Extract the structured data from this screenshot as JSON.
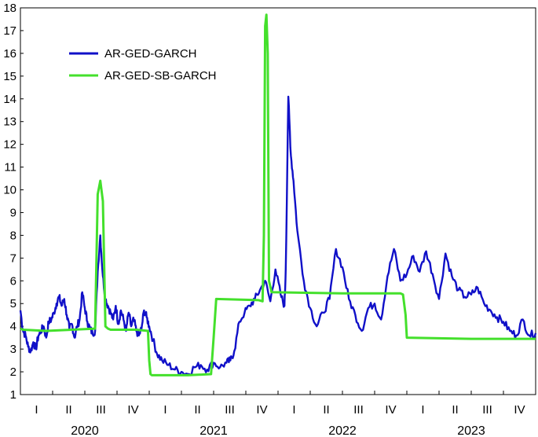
{
  "chart_data": {
    "type": "line",
    "title": "",
    "xlabel": "",
    "ylabel": "",
    "ylim": [
      1,
      18
    ],
    "yticks": [
      1,
      2,
      3,
      4,
      5,
      6,
      7,
      8,
      9,
      10,
      11,
      12,
      13,
      14,
      15,
      16,
      17,
      18
    ],
    "xlim": [
      2020.0,
      2024.0
    ],
    "quarter_labels": [
      "I",
      "II",
      "III",
      "IV",
      "I",
      "II",
      "III",
      "IV",
      "I",
      "II",
      "III",
      "IV",
      "I",
      "II",
      "III",
      "IV"
    ],
    "year_labels": [
      "2020",
      "2021",
      "2022",
      "2023"
    ],
    "grid": false,
    "legend": {
      "placement": "top-left"
    },
    "series": [
      {
        "name": "AR-GED-GARCH",
        "color": "#1010c8",
        "x": [
          2020.0,
          2020.02,
          2020.04,
          2020.06,
          2020.08,
          2020.1,
          2020.12,
          2020.14,
          2020.16,
          2020.18,
          2020.2,
          2020.22,
          2020.24,
          2020.26,
          2020.28,
          2020.3,
          2020.32,
          2020.34,
          2020.36,
          2020.38,
          2020.4,
          2020.42,
          2020.44,
          2020.46,
          2020.48,
          2020.5,
          2020.52,
          2020.54,
          2020.56,
          2020.58,
          2020.6,
          2020.62,
          2020.64,
          2020.66,
          2020.68,
          2020.7,
          2020.72,
          2020.74,
          2020.76,
          2020.78,
          2020.8,
          2020.82,
          2020.84,
          2020.86,
          2020.88,
          2020.9,
          2020.92,
          2020.94,
          2020.96,
          2020.98,
          2021.0,
          2021.03,
          2021.06,
          2021.1,
          2021.15,
          2021.2,
          2021.25,
          2021.3,
          2021.35,
          2021.4,
          2021.45,
          2021.5,
          2021.55,
          2021.6,
          2021.63,
          2021.66,
          2021.7,
          2021.74,
          2021.78,
          2021.82,
          2021.86,
          2021.9,
          2021.94,
          2021.98,
          2022.02,
          2022.05,
          2022.06,
          2022.08,
          2022.1,
          2022.12,
          2022.15,
          2022.2,
          2022.25,
          2022.3,
          2022.35,
          2022.4,
          2022.45,
          2022.5,
          2022.55,
          2022.6,
          2022.65,
          2022.7,
          2022.75,
          2022.8,
          2022.85,
          2022.9,
          2022.95,
          2023.0,
          2023.05,
          2023.1,
          2023.15,
          2023.2,
          2023.25,
          2023.3,
          2023.35,
          2023.4,
          2023.45,
          2023.5,
          2023.55,
          2023.6,
          2023.65,
          2023.7,
          2023.75,
          2023.8,
          2023.85,
          2023.9,
          2023.95,
          2024.0
        ],
        "values": [
          4.7,
          3.8,
          3.6,
          3.1,
          2.9,
          3.3,
          3.0,
          3.6,
          3.8,
          4.0,
          3.5,
          4.2,
          4.3,
          4.6,
          5.0,
          5.3,
          4.9,
          5.2,
          4.5,
          3.9,
          4.1,
          3.5,
          4.0,
          4.3,
          5.5,
          4.8,
          4.2,
          3.9,
          3.7,
          3.8,
          6.4,
          8.0,
          6.2,
          5.2,
          4.9,
          4.6,
          4.3,
          4.9,
          4.1,
          4.7,
          4.3,
          3.8,
          4.6,
          4.0,
          4.3,
          3.8,
          3.6,
          3.9,
          4.7,
          4.4,
          4.0,
          3.4,
          2.8,
          2.5,
          2.3,
          2.1,
          2.0,
          1.9,
          2.2,
          2.3,
          2.1,
          2.4,
          2.2,
          2.4,
          2.5,
          2.9,
          4.2,
          4.6,
          4.9,
          5.2,
          5.6,
          6.0,
          5.1,
          6.5,
          5.4,
          4.9,
          6.5,
          14.1,
          11.5,
          10.4,
          8.2,
          6.0,
          4.8,
          4.0,
          4.6,
          5.2,
          7.4,
          6.6,
          5.2,
          4.5,
          3.8,
          4.8,
          5.0,
          4.3,
          6.2,
          7.4,
          6.0,
          6.3,
          7.1,
          6.4,
          7.3,
          6.3,
          5.2,
          7.2,
          6.2,
          5.6,
          5.3,
          5.4,
          5.7,
          5.0,
          4.7,
          4.4,
          4.2,
          3.8,
          3.6,
          4.3,
          3.6,
          3.7
        ],
        "values_tail": []
      },
      {
        "name": "AR-GED-SB-GARCH",
        "color": "#44e02c",
        "x": [
          2020.0,
          2020.02,
          2020.2,
          2020.4,
          2020.58,
          2020.6,
          2020.62,
          2020.64,
          2020.66,
          2020.68,
          2020.7,
          2020.9,
          2020.99,
          2021.0,
          2021.01,
          2021.02,
          2021.3,
          2021.48,
          2021.5,
          2021.52,
          2021.85,
          2021.88,
          2021.89,
          2021.9,
          2021.91,
          2021.92,
          2021.93,
          2021.95,
          2022.5,
          2022.95,
          2022.97,
          2022.99,
          2023.0,
          2023.5,
          2024.0
        ],
        "values": [
          3.9,
          3.85,
          3.8,
          3.85,
          3.9,
          9.8,
          10.4,
          9.5,
          4.0,
          3.9,
          3.85,
          3.85,
          3.8,
          2.5,
          1.9,
          1.85,
          1.85,
          1.9,
          3.5,
          5.2,
          5.15,
          5.1,
          8.0,
          17.2,
          17.7,
          16.0,
          6.0,
          5.5,
          5.45,
          5.45,
          5.4,
          4.5,
          3.5,
          3.45,
          3.45
        ]
      }
    ]
  }
}
